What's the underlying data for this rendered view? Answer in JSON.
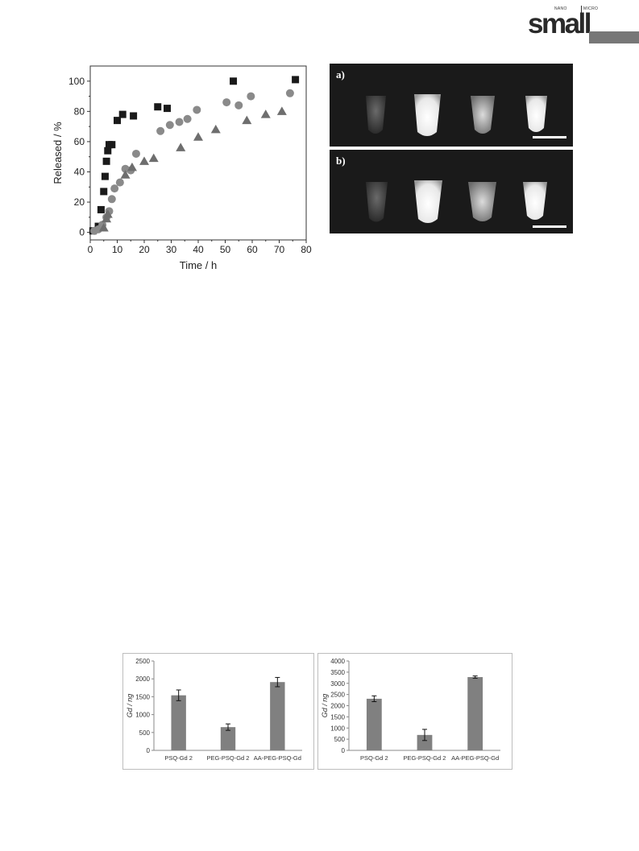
{
  "header": {
    "logo_small_prefix": "NANO",
    "logo_small_suffix": "MICRO",
    "logo_word": "small"
  },
  "release_chart": {
    "chart_data": {
      "type": "scatter",
      "title": "",
      "xlabel": "Time / h",
      "ylabel": "Released / %",
      "xlim": [
        0,
        80
      ],
      "ylim": [
        -5,
        110
      ],
      "xticks": [
        0,
        10,
        20,
        30,
        40,
        50,
        60,
        70,
        80
      ],
      "yticks": [
        0,
        20,
        40,
        60,
        80,
        100
      ],
      "grid": false,
      "series": [
        {
          "marker": "square",
          "color": "#1a1a1a",
          "x": [
            1,
            3,
            4,
            5,
            5.5,
            6,
            6.5,
            7,
            8,
            10,
            12,
            16,
            25,
            28.5,
            53,
            76
          ],
          "y": [
            1,
            4,
            15,
            27,
            37,
            47,
            54,
            58,
            58,
            74,
            78,
            77,
            83,
            82,
            100,
            101
          ]
        },
        {
          "marker": "circle",
          "color": "#8a8a8a",
          "x": [
            1.5,
            3,
            4.5,
            6,
            7,
            8,
            9,
            11,
            13,
            15,
            17,
            26,
            29.5,
            33,
            36,
            39.5,
            50.5,
            55,
            59.5,
            74
          ],
          "y": [
            1,
            2,
            5,
            10,
            14,
            22,
            29,
            33,
            42,
            41,
            52,
            67,
            71,
            73,
            75,
            81,
            86,
            84,
            90,
            92
          ]
        },
        {
          "marker": "triangle",
          "color": "#6e6e6e",
          "x": [
            5,
            6,
            6.5,
            13,
            15.5,
            20,
            23.5,
            33.5,
            40,
            46.5,
            58,
            65,
            71
          ],
          "y": [
            3,
            9,
            12,
            38,
            43,
            47,
            49,
            56,
            63,
            68,
            74,
            78,
            80
          ]
        }
      ]
    }
  },
  "mri_panels": {
    "panel_a_label": "a)",
    "panel_b_label": "b)"
  },
  "bar_charts": {
    "chart_data": [
      {
        "type": "bar",
        "title": "",
        "xlabel": "",
        "ylabel": "Gd / ng",
        "categories": [
          "PSQ-Gd 2",
          "PEG-PSQ-Gd 2",
          "AA-PEG-PSQ-Gd"
        ],
        "values": [
          1540,
          650,
          1910
        ],
        "errors": [
          150,
          90,
          130
        ],
        "ylim": [
          0,
          2500
        ],
        "yticks": [
          0,
          500,
          1000,
          1500,
          2000,
          2500
        ],
        "color": "#808080"
      },
      {
        "type": "bar",
        "title": "",
        "xlabel": "",
        "ylabel": "Gd / ng",
        "categories": [
          "PSQ-Gd 2",
          "PEG-PSQ-Gd 2",
          "AA-PEG-PSQ-Gd"
        ],
        "values": [
          2310,
          690,
          3280
        ],
        "errors": [
          130,
          250,
          50
        ],
        "ylim": [
          0,
          4000
        ],
        "yticks": [
          0,
          500,
          1000,
          1500,
          2000,
          2500,
          3000,
          3500,
          4000
        ],
        "color": "#808080"
      }
    ]
  }
}
